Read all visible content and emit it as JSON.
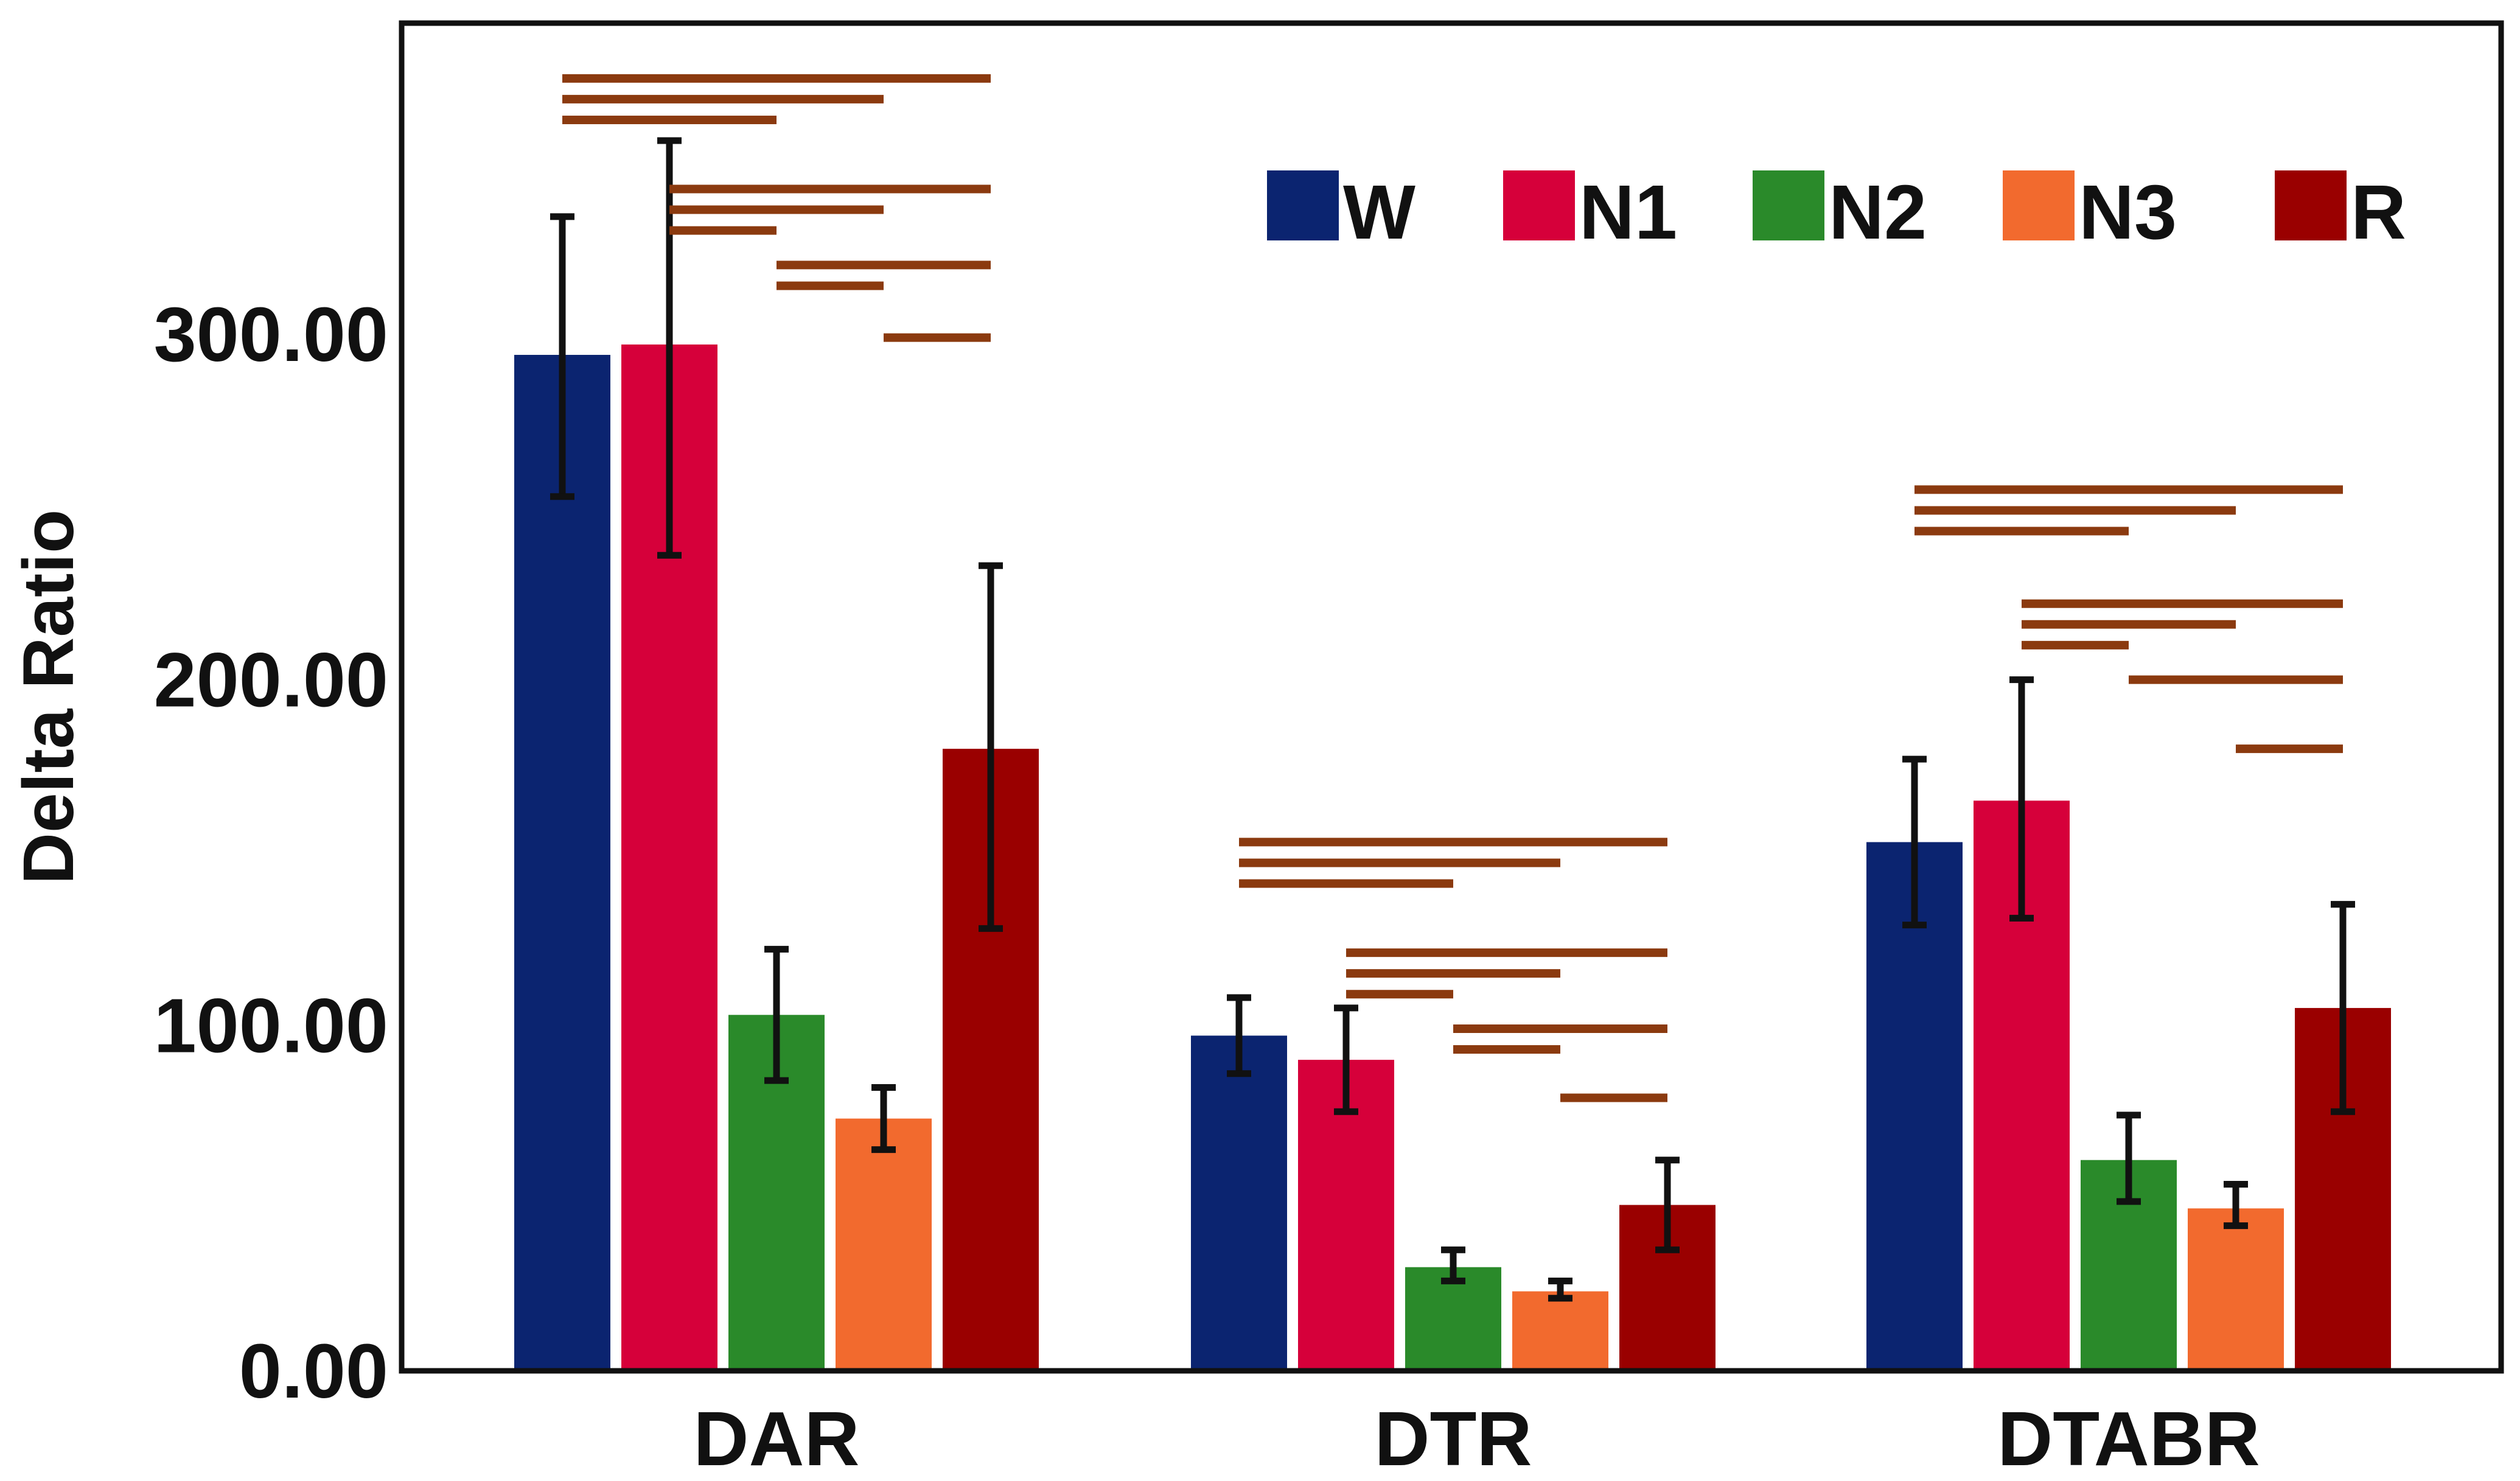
{
  "chart_data": {
    "type": "bar",
    "title": "",
    "xlabel": "",
    "ylabel": "Delta Ratio",
    "ylim": [
      0,
      390
    ],
    "yticks": [
      0,
      100,
      200,
      300
    ],
    "ytick_labels": [
      "0.00",
      "100.00",
      "200.00",
      "300.00"
    ],
    "categories": [
      "DAR",
      "DTR",
      "DTABR"
    ],
    "series": [
      {
        "name": "W",
        "color": "#0b2470",
        "values": [
          294,
          97,
          153
        ],
        "err_low": [
          253,
          86,
          129
        ],
        "err_high": [
          334,
          108,
          177
        ]
      },
      {
        "name": "N1",
        "color": "#d6003a",
        "values": [
          297,
          90,
          165
        ],
        "err_low": [
          236,
          75,
          131
        ],
        "err_high": [
          356,
          105,
          200
        ]
      },
      {
        "name": "N2",
        "color": "#2a8a2a",
        "values": [
          103,
          30,
          61
        ],
        "err_low": [
          84,
          26,
          49
        ],
        "err_high": [
          122,
          35,
          74
        ]
      },
      {
        "name": "N3",
        "color": "#f26a2e",
        "values": [
          73,
          23,
          47
        ],
        "err_low": [
          64,
          21,
          42
        ],
        "err_high": [
          82,
          26,
          54
        ]
      },
      {
        "name": "R",
        "color": "#9a0000",
        "values": [
          180,
          48,
          105
        ],
        "err_low": [
          128,
          35,
          75
        ],
        "err_high": [
          233,
          61,
          135
        ]
      }
    ],
    "legend_position": "top-right",
    "significance_color": "#8b3a0f",
    "significance_bars": [
      {
        "category": "DAR",
        "from": "W",
        "to": "R",
        "level": 374
      },
      {
        "category": "DAR",
        "from": "W",
        "to": "N3",
        "level": 368
      },
      {
        "category": "DAR",
        "from": "W",
        "to": "N2",
        "level": 362
      },
      {
        "category": "DAR",
        "from": "N1",
        "to": "R",
        "level": 342
      },
      {
        "category": "DAR",
        "from": "N1",
        "to": "N3",
        "level": 336
      },
      {
        "category": "DAR",
        "from": "N1",
        "to": "N2",
        "level": 330
      },
      {
        "category": "DAR",
        "from": "N2",
        "to": "R",
        "level": 320
      },
      {
        "category": "DAR",
        "from": "N2",
        "to": "N3",
        "level": 314
      },
      {
        "category": "DAR",
        "from": "N3",
        "to": "R",
        "level": 299
      },
      {
        "category": "DTR",
        "from": "W",
        "to": "R",
        "level": 153
      },
      {
        "category": "DTR",
        "from": "W",
        "to": "N3",
        "level": 147
      },
      {
        "category": "DTR",
        "from": "W",
        "to": "N2",
        "level": 141
      },
      {
        "category": "DTR",
        "from": "N1",
        "to": "R",
        "level": 121
      },
      {
        "category": "DTR",
        "from": "N1",
        "to": "N3",
        "level": 115
      },
      {
        "category": "DTR",
        "from": "N1",
        "to": "N2",
        "level": 109
      },
      {
        "category": "DTR",
        "from": "N2",
        "to": "R",
        "level": 99
      },
      {
        "category": "DTR",
        "from": "N2",
        "to": "N3",
        "level": 93
      },
      {
        "category": "DTR",
        "from": "N3",
        "to": "R",
        "level": 79
      },
      {
        "category": "DTABR",
        "from": "W",
        "to": "R",
        "level": 255
      },
      {
        "category": "DTABR",
        "from": "W",
        "to": "N3",
        "level": 249
      },
      {
        "category": "DTABR",
        "from": "W",
        "to": "N2",
        "level": 243
      },
      {
        "category": "DTABR",
        "from": "N1",
        "to": "R",
        "level": 222
      },
      {
        "category": "DTABR",
        "from": "N1",
        "to": "N3",
        "level": 216
      },
      {
        "category": "DTABR",
        "from": "N1",
        "to": "N2",
        "level": 210
      },
      {
        "category": "DTABR",
        "from": "N2",
        "to": "R",
        "level": 200
      },
      {
        "category": "DTABR",
        "from": "N3",
        "to": "R",
        "level": 180
      }
    ]
  }
}
